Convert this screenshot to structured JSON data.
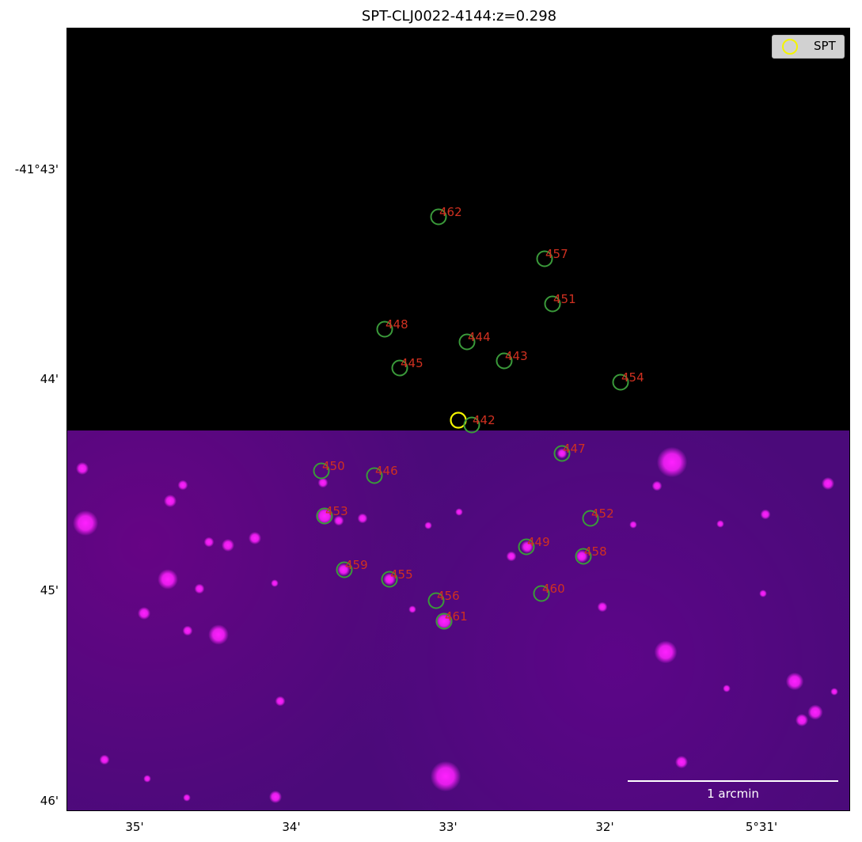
{
  "title": "SPT-CLJ0022-4144:z=0.298",
  "y_ticks": [
    "-41°43'",
    "44'",
    "45'",
    "46'"
  ],
  "x_ticks": [
    "35'",
    "34'",
    "33'",
    "32'",
    "5°31'"
  ],
  "legend": {
    "label": "SPT",
    "color": "#f5f500"
  },
  "scalebar": {
    "label": "1 arcmin",
    "color": "#ffffff"
  },
  "colors": {
    "marker": "#3a9a3a",
    "label": "#d03020",
    "image_field": "#4b0a7a",
    "galaxy": "#ff20ff"
  },
  "sources": [
    {
      "id": "462"
    },
    {
      "id": "457"
    },
    {
      "id": "451"
    },
    {
      "id": "448"
    },
    {
      "id": "444"
    },
    {
      "id": "443"
    },
    {
      "id": "445"
    },
    {
      "id": "454"
    },
    {
      "id": "442"
    },
    {
      "id": "447"
    },
    {
      "id": "450"
    },
    {
      "id": "446"
    },
    {
      "id": "453"
    },
    {
      "id": "452"
    },
    {
      "id": "449"
    },
    {
      "id": "458"
    },
    {
      "id": "459"
    },
    {
      "id": "455"
    },
    {
      "id": "460"
    },
    {
      "id": "456"
    },
    {
      "id": "461"
    }
  ]
}
